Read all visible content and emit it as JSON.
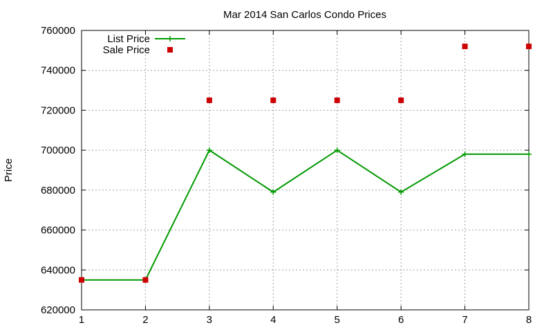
{
  "chart_data": {
    "type": "line",
    "title": "Mar 2014 San Carlos Condo Prices",
    "xlabel": "",
    "ylabel": "Price",
    "xlim": [
      1,
      8
    ],
    "ylim": [
      620000,
      760000
    ],
    "x_ticks": [
      "1",
      "2",
      "3",
      "4",
      "5",
      "6",
      "7",
      "8"
    ],
    "y_ticks": [
      "620000",
      "640000",
      "660000",
      "680000",
      "700000",
      "720000",
      "740000",
      "760000"
    ],
    "grid": true,
    "legend_position": "top-left",
    "series": [
      {
        "name": "List Price",
        "style": "line-with-plus-markers",
        "color": "#009900",
        "x": [
          1,
          2,
          3,
          4,
          5,
          6,
          7,
          8
        ],
        "values": [
          635000,
          635000,
          700000,
          679000,
          700000,
          679000,
          698000,
          698000
        ]
      },
      {
        "name": "Sale Price",
        "style": "square-markers",
        "color": "#cc0000",
        "x": [
          1,
          2,
          3,
          4,
          5,
          6,
          7,
          8
        ],
        "values": [
          635000,
          635000,
          725000,
          725000,
          725000,
          725000,
          752000,
          752000
        ]
      }
    ]
  }
}
